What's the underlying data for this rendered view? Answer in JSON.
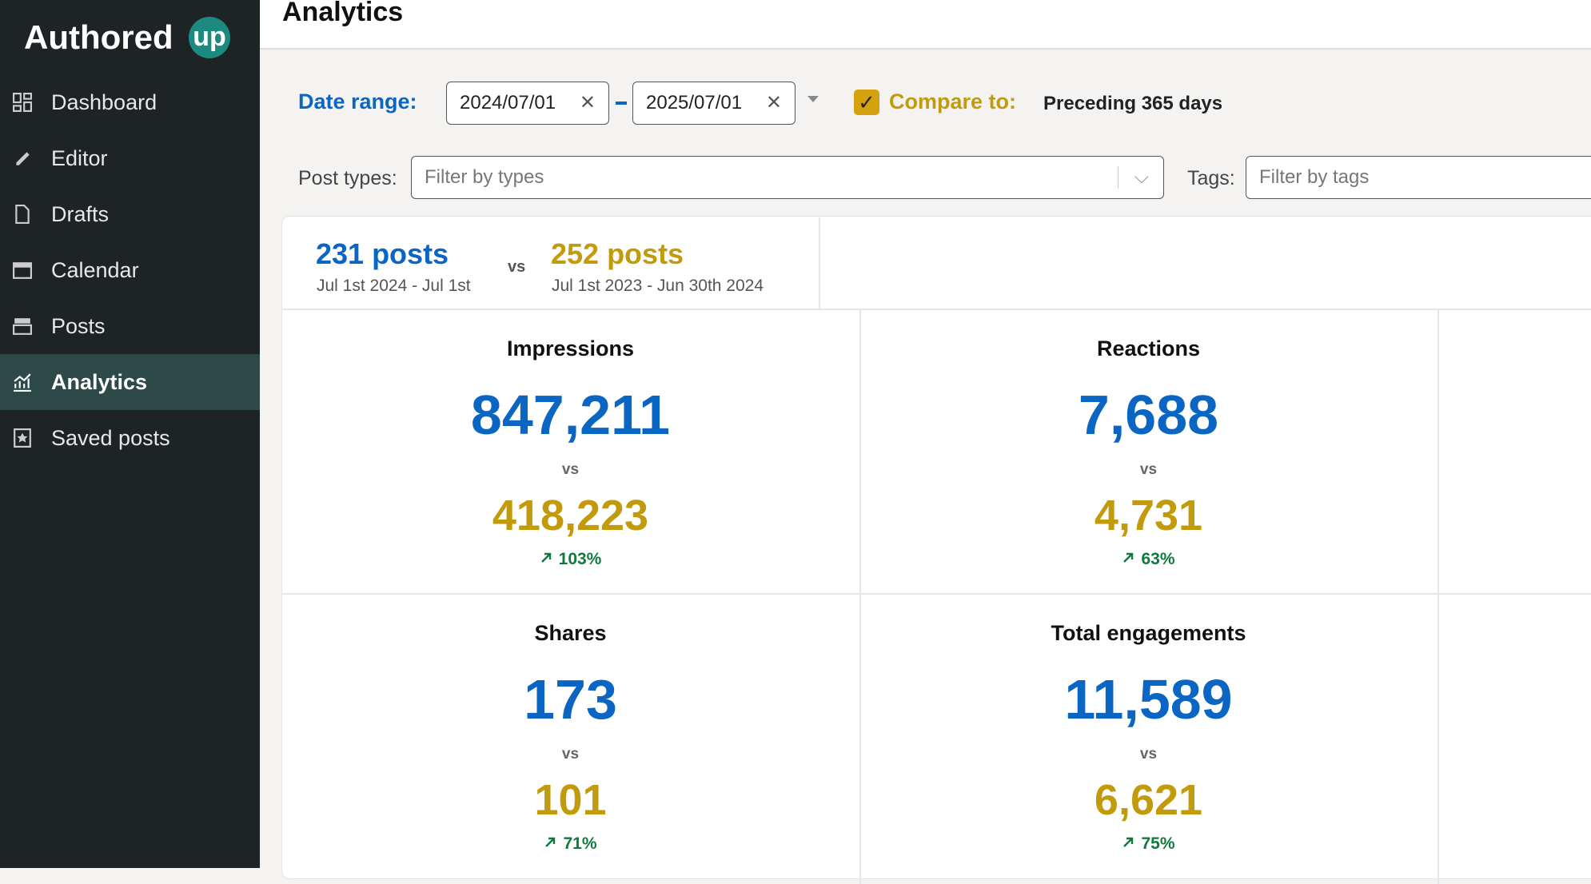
{
  "sidebar": {
    "logo": {
      "text": "Authored",
      "badge": "up"
    },
    "nav": [
      {
        "label": "Dashboard"
      },
      {
        "label": "Editor"
      },
      {
        "label": "Drafts"
      },
      {
        "label": "Calendar"
      },
      {
        "label": "Posts"
      },
      {
        "label": "Analytics",
        "active": true
      },
      {
        "label": "Saved posts"
      }
    ]
  },
  "header": {
    "title": "Analytics"
  },
  "filters": {
    "date_range_label": "Date range:",
    "start_date": "2024/07/01",
    "end_date": "2025/07/01",
    "compare_label": "Compare to:",
    "compare_value": "Preceding 365 days",
    "post_types_label": "Post types:",
    "post_types_placeholder": "Filter by types",
    "tags_label": "Tags:",
    "tags_placeholder": "Filter by tags"
  },
  "summary": {
    "current_posts": "231 posts",
    "current_period": "Jul 1st 2024 - Jul 1st",
    "vs": "vs",
    "previous_posts": "252 posts",
    "previous_period": "Jul 1st 2023 - Jun 30th 2024"
  },
  "metrics": [
    {
      "title": "Impressions",
      "value": "847,211",
      "vs": "vs",
      "previous": "418,223",
      "change": "103%"
    },
    {
      "title": "Reactions",
      "value": "7,688",
      "vs": "vs",
      "previous": "4,731",
      "change": "63%"
    },
    {
      "title": "Shares",
      "value": "173",
      "vs": "vs",
      "previous": "101",
      "change": "71%"
    },
    {
      "title": "Total engagements",
      "value": "11,589",
      "vs": "vs",
      "previous": "6,621",
      "change": "75%"
    }
  ]
}
